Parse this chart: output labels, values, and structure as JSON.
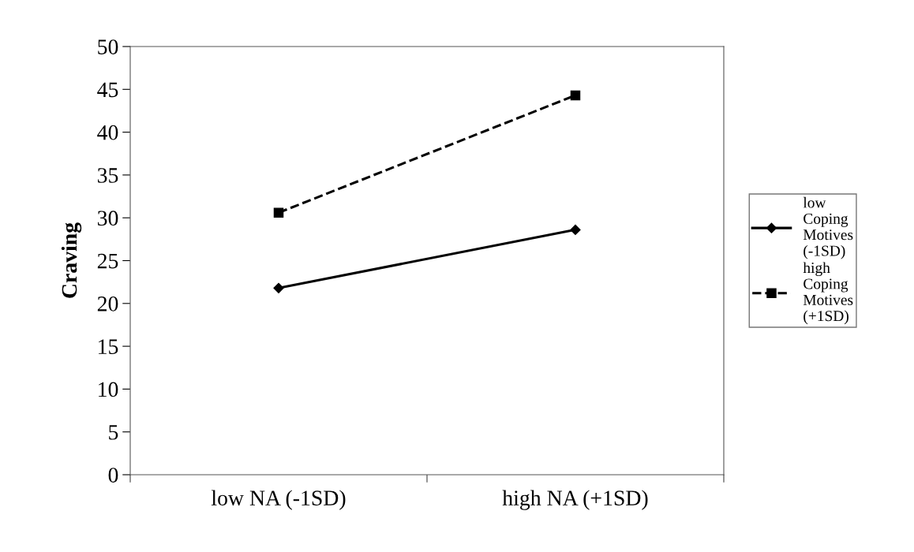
{
  "chart_data": {
    "type": "line",
    "ylabel": "Craving",
    "categories": [
      "low NA (-1SD)",
      "high NA (+1SD)"
    ],
    "series": [
      {
        "name": "low Coping Motives (-1SD)",
        "color": "#000000",
        "values": [
          21.8,
          28.6
        ],
        "marker": "diamond",
        "line_style": "solid"
      },
      {
        "name": "high Coping Motives (+1SD)",
        "color": "#000000",
        "values": [
          30.6,
          44.3
        ],
        "marker": "square",
        "line_style": "dashed"
      }
    ],
    "ylim": [
      0,
      50
    ],
    "yticks": [
      0,
      5,
      10,
      15,
      20,
      25,
      30,
      35,
      40,
      45,
      50
    ],
    "grid": false,
    "legend": "right"
  }
}
